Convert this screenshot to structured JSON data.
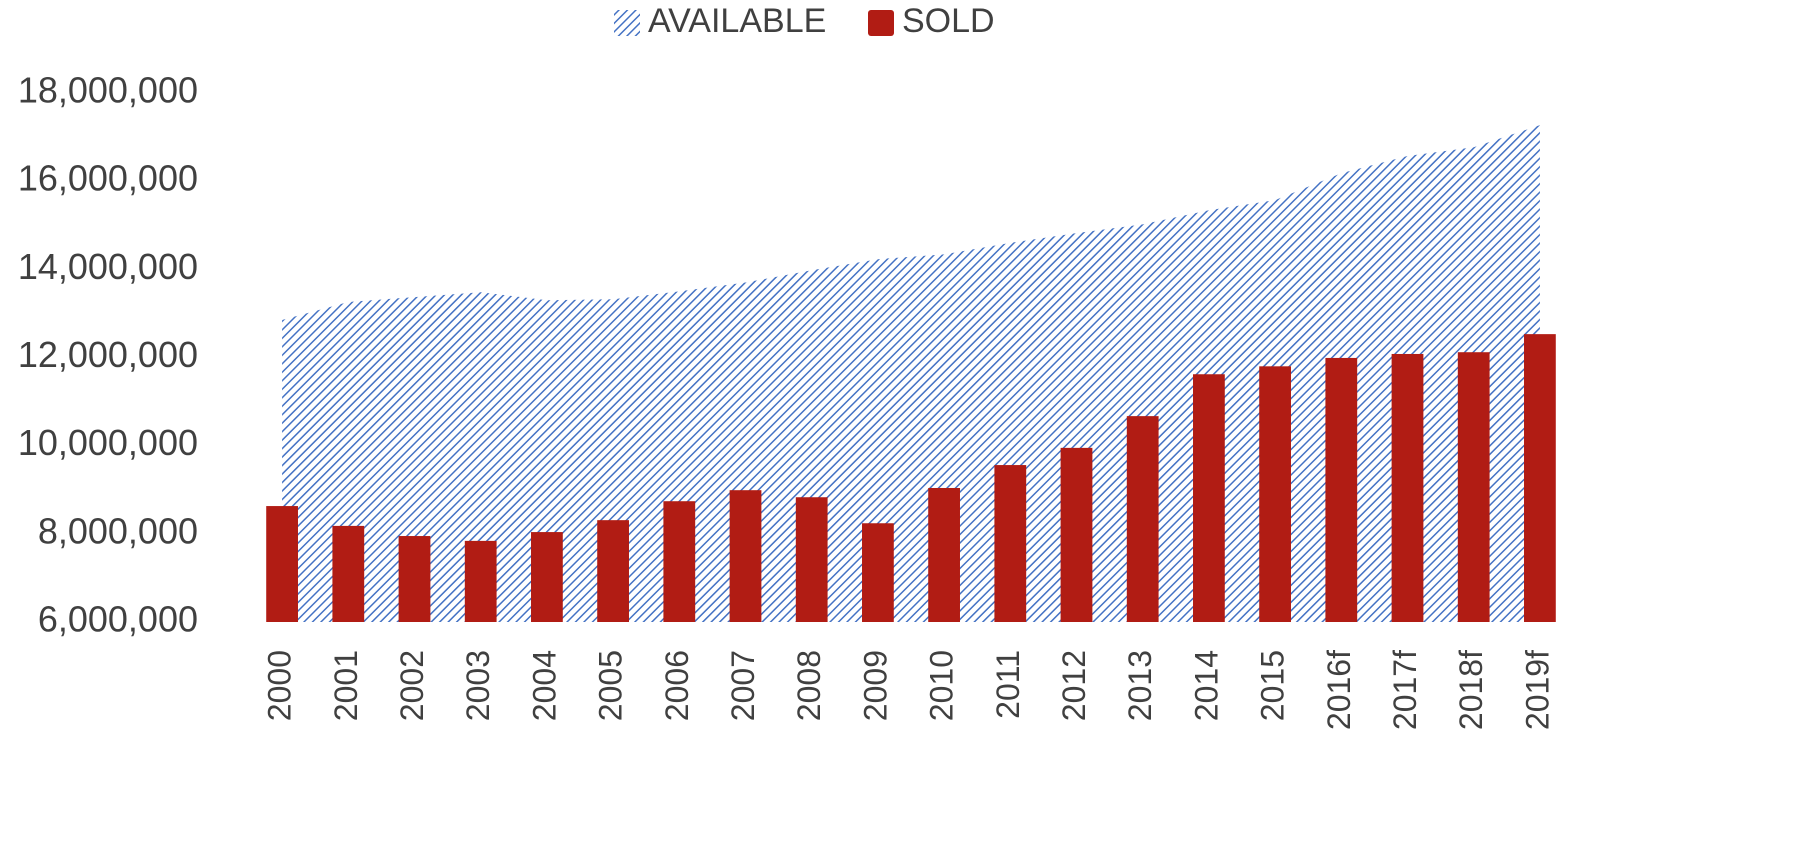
{
  "chart_data": {
    "type": "bar_area",
    "categories": [
      "2000",
      "2001",
      "2002",
      "2003",
      "2004",
      "2005",
      "2006",
      "2007",
      "2008",
      "2009",
      "2010",
      "2011",
      "2012",
      "2013",
      "2014",
      "2015",
      "2016f",
      "2017f",
      "2018f",
      "2019f"
    ],
    "series": [
      {
        "name": "AVAILABLE",
        "color": "#4472c4",
        "values": [
          12850000,
          13260000,
          13370000,
          13480000,
          13300000,
          13320000,
          13500000,
          13700000,
          13980000,
          14230000,
          14340000,
          14600000,
          14820000,
          15020000,
          15340000,
          15570000,
          16180000,
          16570000,
          16770000,
          17270000
        ]
      },
      {
        "name": "SOLD",
        "color": "#b11c14",
        "values": [
          8630000,
          8180000,
          7950000,
          7840000,
          8040000,
          8310000,
          8740000,
          8990000,
          8830000,
          8240000,
          9040000,
          9560000,
          9950000,
          10670000,
          11620000,
          11800000,
          11990000,
          12080000,
          12120000,
          12530000
        ]
      }
    ],
    "ylim": [
      6000000,
      18000000
    ],
    "yticks": [
      {
        "value": 6000000,
        "label": "6,000,000"
      },
      {
        "value": 8000000,
        "label": "8,000,000"
      },
      {
        "value": 10000000,
        "label": "10,000,000"
      },
      {
        "value": 12000000,
        "label": "12,000,000"
      },
      {
        "value": 14000000,
        "label": "14,000,000"
      },
      {
        "value": 16000000,
        "label": "16,000,000"
      },
      {
        "value": 18000000,
        "label": "18,000,000"
      }
    ],
    "legend": "top"
  }
}
